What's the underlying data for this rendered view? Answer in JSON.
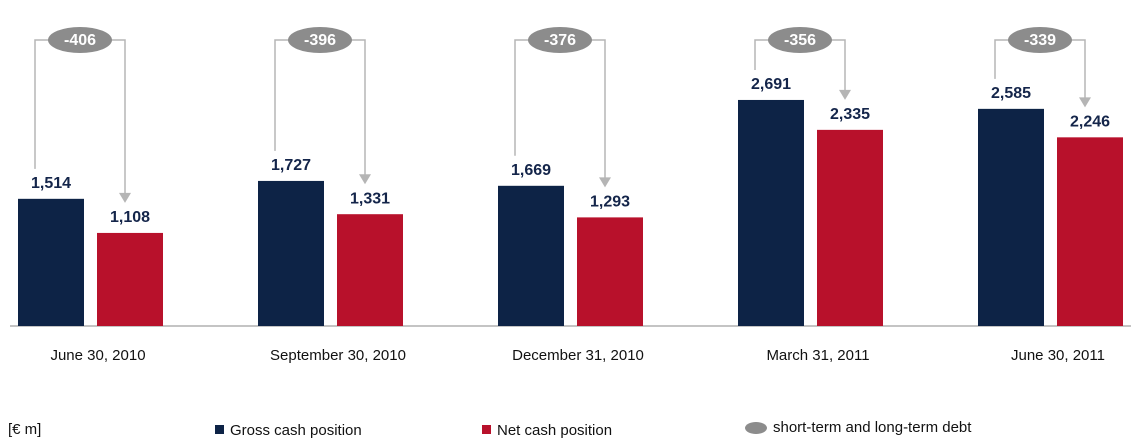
{
  "chart_data": {
    "type": "bar",
    "unit_label": "[€ m]",
    "categories": [
      "June 30, 2010",
      "September 30, 2010",
      "December 31, 2010",
      "March 31, 2011",
      "June 30, 2011"
    ],
    "series": [
      {
        "name": "Gross cash position",
        "color": "#0d2346",
        "values": [
          1514,
          1727,
          1669,
          2691,
          2585
        ],
        "value_labels": [
          "1,514",
          "1,727",
          "1,669",
          "2,691",
          "2,585"
        ]
      },
      {
        "name": "Net cash position",
        "color": "#b8112b",
        "values": [
          1108,
          1331,
          1293,
          2335,
          2246
        ],
        "value_labels": [
          "1,108",
          "1,331",
          "1,293",
          "2,335",
          "2,246"
        ]
      },
      {
        "name": "short-term and long-term debt",
        "color": "#8c8c8c",
        "values": [
          -406,
          -396,
          -376,
          -356,
          -339
        ]
      }
    ],
    "ylim": [
      0,
      3000
    ]
  }
}
